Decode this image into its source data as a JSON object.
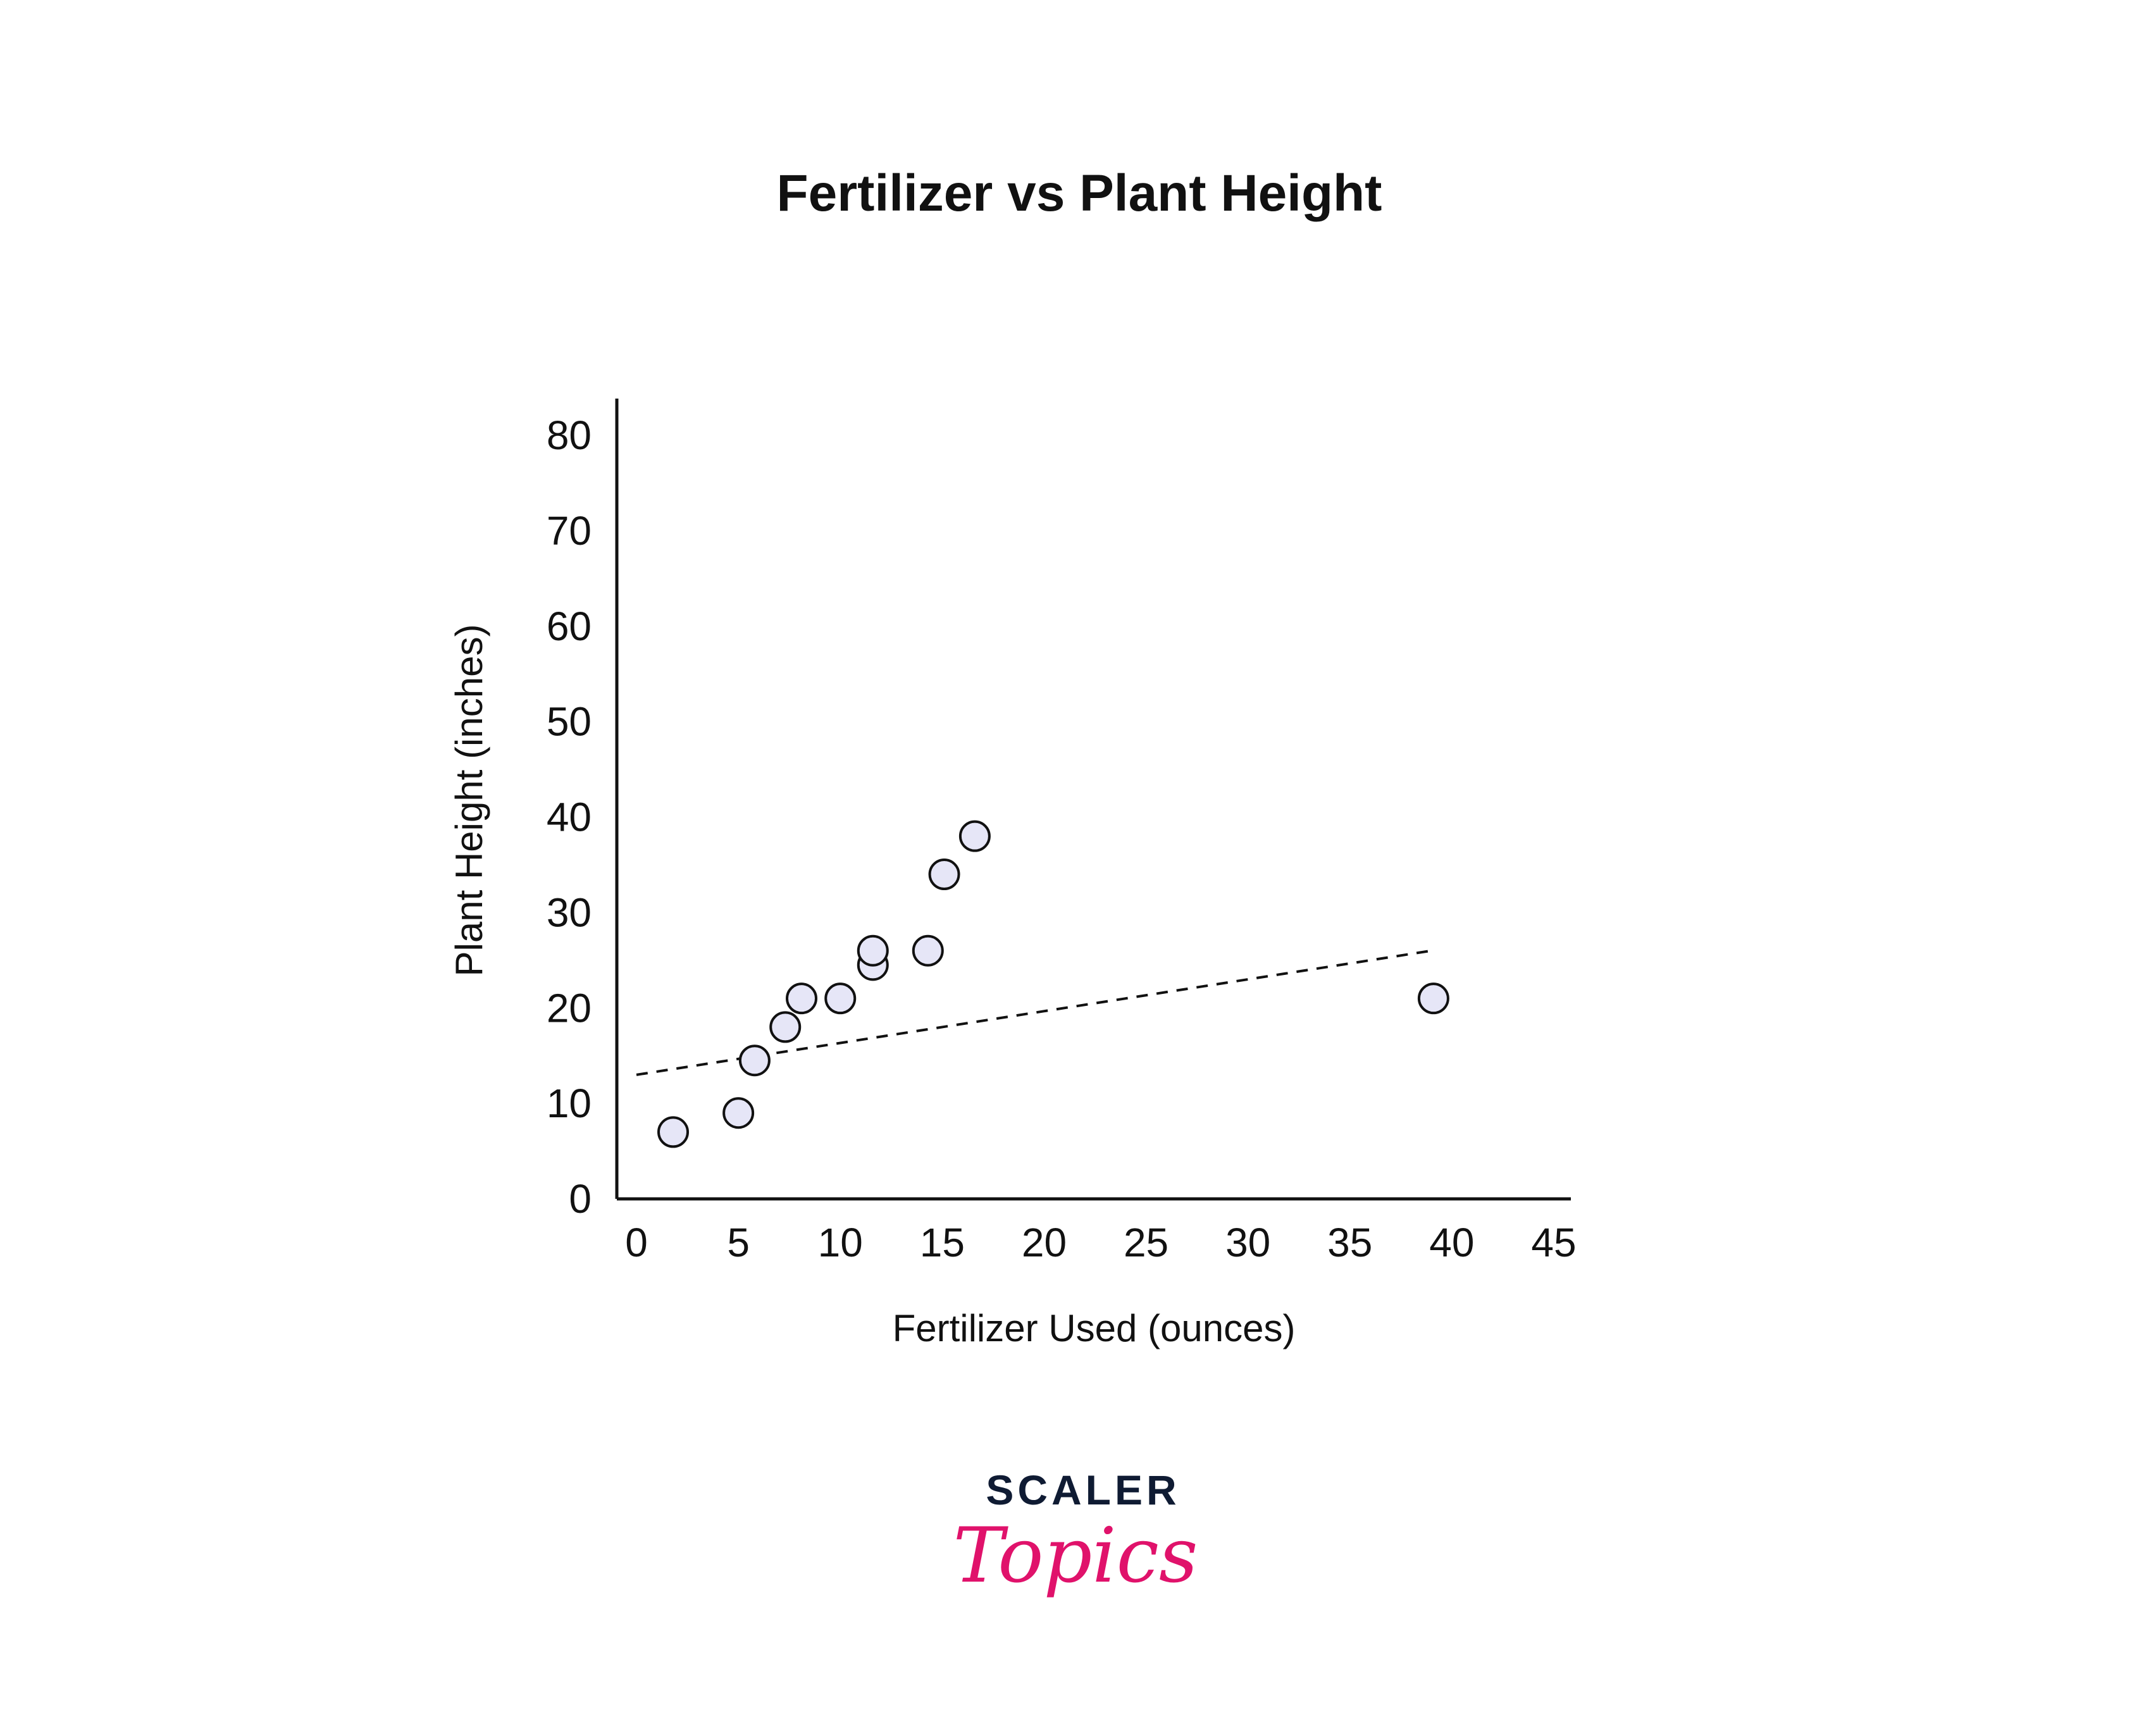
{
  "chart_data": {
    "type": "scatter",
    "title": "Fertilizer vs Plant Height",
    "xlabel": "Fertilizer Used (ounces)",
    "ylabel": "Plant Height (inches)",
    "xlim": [
      0,
      45
    ],
    "ylim": [
      0,
      80
    ],
    "x_ticks": [
      "0",
      "5",
      "10",
      "15",
      "20",
      "25",
      "30",
      "35",
      "40",
      "45"
    ],
    "y_ticks": [
      "0",
      "10",
      "20",
      "30",
      "40",
      "50",
      "60",
      "70",
      "80"
    ],
    "grid": false,
    "points": [
      {
        "x": 1.8,
        "y": 7
      },
      {
        "x": 5.0,
        "y": 9
      },
      {
        "x": 5.8,
        "y": 14.5
      },
      {
        "x": 7.3,
        "y": 18
      },
      {
        "x": 8.1,
        "y": 21
      },
      {
        "x": 10.0,
        "y": 21
      },
      {
        "x": 11.6,
        "y": 24.5
      },
      {
        "x": 11.6,
        "y": 26
      },
      {
        "x": 14.3,
        "y": 26
      },
      {
        "x": 15.1,
        "y": 34
      },
      {
        "x": 16.6,
        "y": 38
      },
      {
        "x": 39.1,
        "y": 21
      }
    ],
    "trendline": {
      "x": [
        0,
        39
      ],
      "y": [
        13,
        26
      ]
    },
    "colors": {
      "marker_fill": "#e6e6f7",
      "marker_stroke": "#111111",
      "axis": "#111111",
      "trendline": "#111111"
    }
  },
  "logo": {
    "top": "SCALER",
    "bottom": "Topics",
    "top_color": "#0f1b33",
    "bottom_color": "#e0126b"
  }
}
